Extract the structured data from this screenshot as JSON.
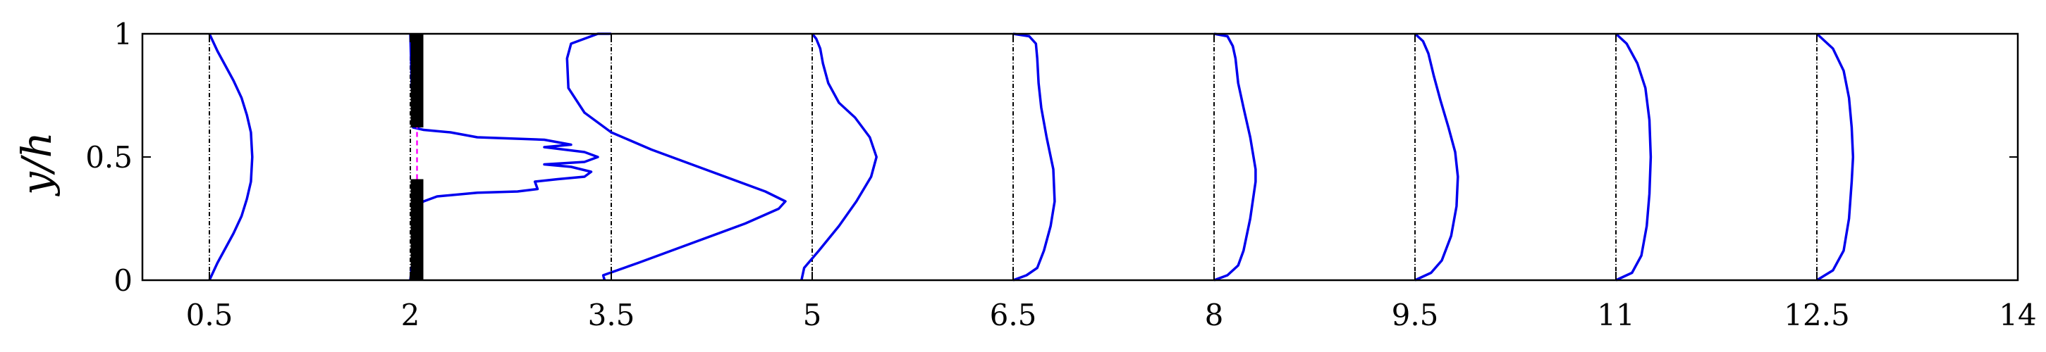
{
  "chart_data": {
    "type": "line",
    "title": "",
    "xlabel": "",
    "ylabel": "y/h",
    "xlim": [
      0,
      14
    ],
    "ylim": [
      0,
      1
    ],
    "x_ticks": [
      0.5,
      2,
      3.5,
      5,
      6.5,
      8,
      9.5,
      11,
      12.5,
      14
    ],
    "x_tick_labels": [
      "0.5",
      "2",
      "3.5",
      "5",
      "6.5",
      "8",
      "9.5",
      "11",
      "12.5",
      "14"
    ],
    "y_ticks": [
      0,
      0.5,
      1
    ],
    "y_tick_labels": [
      "0",
      "0.5",
      "1"
    ],
    "grid": false,
    "legend": "none",
    "colors": {
      "profile": "#0000ee",
      "baseline": "#000000",
      "slot_line": "#ff00ff",
      "obstacle": "#000000"
    },
    "obstacle": {
      "x": 2.05,
      "blocks": [
        [
          0,
          0.41
        ],
        [
          0.62,
          1
        ]
      ],
      "slot_line": [
        0.41,
        0.62
      ]
    },
    "profiles": [
      {
        "station": 0.5,
        "points": [
          [
            0,
            0
          ],
          [
            0.06,
            0.07
          ],
          [
            0.12,
            0.13
          ],
          [
            0.18,
            0.19
          ],
          [
            0.24,
            0.26
          ],
          [
            0.28,
            0.33
          ],
          [
            0.31,
            0.4
          ],
          [
            0.32,
            0.5
          ],
          [
            0.31,
            0.6
          ],
          [
            0.28,
            0.67
          ],
          [
            0.24,
            0.74
          ],
          [
            0.18,
            0.81
          ],
          [
            0.12,
            0.87
          ],
          [
            0.06,
            0.93
          ],
          [
            0,
            1
          ]
        ]
      },
      {
        "station": 2,
        "points": [
          [
            0,
            0
          ],
          [
            0.02,
            0.1
          ],
          [
            0.03,
            0.2
          ],
          [
            0.04,
            0.3
          ],
          [
            0.1,
            0.32
          ],
          [
            0.2,
            0.34
          ],
          [
            0.5,
            0.355
          ],
          [
            0.8,
            0.36
          ],
          [
            0.95,
            0.37
          ],
          [
            0.93,
            0.4
          ],
          [
            1.1,
            0.41
          ],
          [
            1.3,
            0.42
          ],
          [
            1.35,
            0.44
          ],
          [
            1.2,
            0.46
          ],
          [
            1.0,
            0.47
          ],
          [
            1.3,
            0.48
          ],
          [
            1.4,
            0.5
          ],
          [
            1.3,
            0.52
          ],
          [
            1.0,
            0.54
          ],
          [
            1.2,
            0.55
          ],
          [
            1.0,
            0.57
          ],
          [
            0.5,
            0.58
          ],
          [
            0.3,
            0.6
          ],
          [
            0.1,
            0.61
          ],
          [
            0.02,
            0.62
          ],
          [
            0.01,
            0.8
          ],
          [
            0,
            1
          ]
        ]
      },
      {
        "station": 3.5,
        "points": [
          [
            -0.05,
            0
          ],
          [
            -0.06,
            0.02
          ],
          [
            0.2,
            0.07
          ],
          [
            0.6,
            0.15
          ],
          [
            1.0,
            0.23
          ],
          [
            1.25,
            0.29
          ],
          [
            1.3,
            0.32
          ],
          [
            1.15,
            0.36
          ],
          [
            0.75,
            0.44
          ],
          [
            0.3,
            0.53
          ],
          [
            0.0,
            0.6
          ],
          [
            -0.2,
            0.68
          ],
          [
            -0.32,
            0.78
          ],
          [
            -0.33,
            0.9
          ],
          [
            -0.3,
            0.96
          ],
          [
            -0.1,
            1.0
          ],
          [
            0,
            1
          ]
        ]
      },
      {
        "station": 5,
        "points": [
          [
            -0.08,
            0
          ],
          [
            -0.06,
            0.05
          ],
          [
            0.05,
            0.12
          ],
          [
            0.2,
            0.22
          ],
          [
            0.33,
            0.32
          ],
          [
            0.44,
            0.42
          ],
          [
            0.48,
            0.5
          ],
          [
            0.43,
            0.58
          ],
          [
            0.32,
            0.66
          ],
          [
            0.2,
            0.72
          ],
          [
            0.12,
            0.8
          ],
          [
            0.08,
            0.88
          ],
          [
            0.06,
            0.94
          ],
          [
            0.03,
            0.98
          ],
          [
            0,
            1
          ]
        ]
      },
      {
        "station": 6.5,
        "points": [
          [
            0,
            0
          ],
          [
            0.1,
            0.02
          ],
          [
            0.18,
            0.05
          ],
          [
            0.23,
            0.12
          ],
          [
            0.28,
            0.22
          ],
          [
            0.31,
            0.32
          ],
          [
            0.3,
            0.45
          ],
          [
            0.25,
            0.58
          ],
          [
            0.21,
            0.7
          ],
          [
            0.19,
            0.8
          ],
          [
            0.18,
            0.9
          ],
          [
            0.17,
            0.96
          ],
          [
            0.12,
            0.99
          ],
          [
            0,
            1
          ]
        ]
      },
      {
        "station": 8,
        "points": [
          [
            0,
            0
          ],
          [
            0.1,
            0.02
          ],
          [
            0.18,
            0.06
          ],
          [
            0.22,
            0.12
          ],
          [
            0.27,
            0.25
          ],
          [
            0.31,
            0.4
          ],
          [
            0.31,
            0.45
          ],
          [
            0.27,
            0.58
          ],
          [
            0.22,
            0.7
          ],
          [
            0.18,
            0.8
          ],
          [
            0.16,
            0.9
          ],
          [
            0.14,
            0.95
          ],
          [
            0.1,
            0.99
          ],
          [
            0,
            1
          ]
        ]
      },
      {
        "station": 9.5,
        "points": [
          [
            0,
            0
          ],
          [
            0.12,
            0.03
          ],
          [
            0.2,
            0.08
          ],
          [
            0.27,
            0.18
          ],
          [
            0.31,
            0.3
          ],
          [
            0.32,
            0.42
          ],
          [
            0.3,
            0.52
          ],
          [
            0.25,
            0.62
          ],
          [
            0.19,
            0.73
          ],
          [
            0.14,
            0.83
          ],
          [
            0.1,
            0.92
          ],
          [
            0.06,
            0.97
          ],
          [
            0,
            1
          ]
        ]
      },
      {
        "station": 11,
        "points": [
          [
            0,
            0
          ],
          [
            0.12,
            0.03
          ],
          [
            0.19,
            0.1
          ],
          [
            0.23,
            0.22
          ],
          [
            0.25,
            0.35
          ],
          [
            0.26,
            0.5
          ],
          [
            0.25,
            0.65
          ],
          [
            0.22,
            0.78
          ],
          [
            0.16,
            0.88
          ],
          [
            0.08,
            0.96
          ],
          [
            0,
            1
          ]
        ]
      },
      {
        "station": 12.5,
        "points": [
          [
            0,
            0
          ],
          [
            0.12,
            0.04
          ],
          [
            0.2,
            0.12
          ],
          [
            0.24,
            0.25
          ],
          [
            0.26,
            0.4
          ],
          [
            0.27,
            0.5
          ],
          [
            0.26,
            0.62
          ],
          [
            0.24,
            0.74
          ],
          [
            0.2,
            0.85
          ],
          [
            0.12,
            0.94
          ],
          [
            0,
            1
          ]
        ]
      }
    ]
  }
}
